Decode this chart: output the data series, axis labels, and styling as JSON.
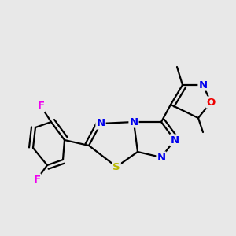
{
  "bg": "#e8e8e8",
  "lc": "#000000",
  "bw": 1.6,
  "dbo": 0.05,
  "fs": 9.5,
  "fs_small": 8.5,
  "colors": {
    "N": "#0000ee",
    "S": "#b8b800",
    "O": "#ee0000",
    "F": "#ee00ee",
    "C": "#000000"
  },
  "figsize": [
    3.0,
    3.0
  ],
  "dpi": 100,
  "xlim": [
    -1.5,
    1.5
  ],
  "ylim": [
    -1.5,
    1.5
  ]
}
